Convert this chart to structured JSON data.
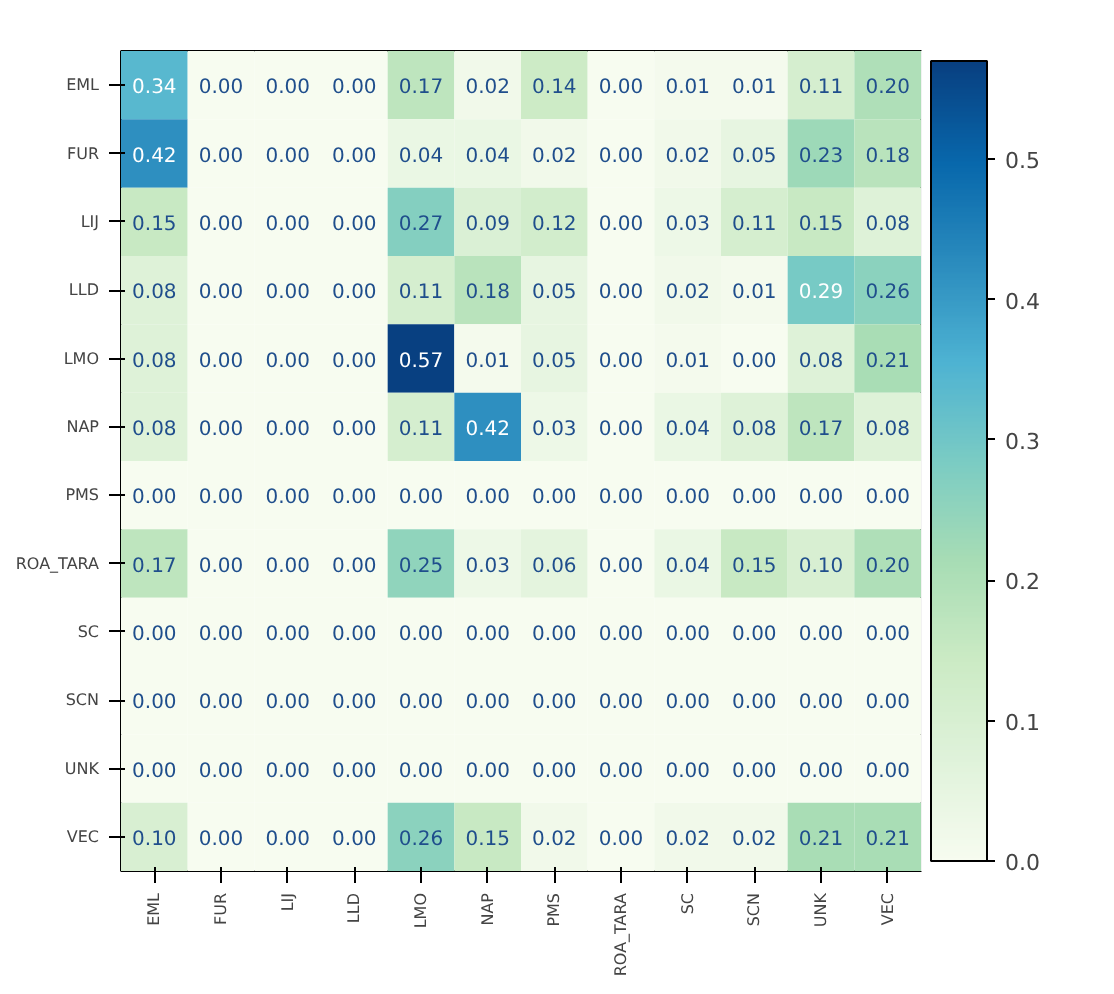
{
  "chart_data": {
    "type": "heatmap",
    "categories": [
      "EML",
      "FUR",
      "LIJ",
      "LLD",
      "LMO",
      "NAP",
      "PMS",
      "ROA_TARA",
      "SC",
      "SCN",
      "UNK",
      "VEC"
    ],
    "y_categories": [
      "EML",
      "FUR",
      "LIJ",
      "LLD",
      "LMO",
      "NAP",
      "PMS",
      "ROA_TARA",
      "SC",
      "SCN",
      "UNK",
      "VEC"
    ],
    "cells": [
      [
        0.34,
        0.0,
        0.0,
        0.0,
        0.17,
        0.02,
        0.14,
        0.0,
        0.01,
        0.01,
        0.11,
        0.2
      ],
      [
        0.42,
        0.0,
        0.0,
        0.0,
        0.04,
        0.04,
        0.02,
        0.0,
        0.02,
        0.05,
        0.23,
        0.18
      ],
      [
        0.15,
        0.0,
        0.0,
        0.0,
        0.27,
        0.09,
        0.12,
        0.0,
        0.03,
        0.11,
        0.15,
        0.08
      ],
      [
        0.08,
        0.0,
        0.0,
        0.0,
        0.11,
        0.18,
        0.05,
        0.0,
        0.02,
        0.01,
        0.29,
        0.26
      ],
      [
        0.08,
        0.0,
        0.0,
        0.0,
        0.57,
        0.01,
        0.05,
        0.0,
        0.01,
        0.0,
        0.08,
        0.21
      ],
      [
        0.08,
        0.0,
        0.0,
        0.0,
        0.11,
        0.42,
        0.03,
        0.0,
        0.04,
        0.08,
        0.17,
        0.08
      ],
      [
        0.0,
        0.0,
        0.0,
        0.0,
        0.0,
        0.0,
        0.0,
        0.0,
        0.0,
        0.0,
        0.0,
        0.0
      ],
      [
        0.17,
        0.0,
        0.0,
        0.0,
        0.25,
        0.03,
        0.06,
        0.0,
        0.04,
        0.15,
        0.1,
        0.2
      ],
      [
        0.0,
        0.0,
        0.0,
        0.0,
        0.0,
        0.0,
        0.0,
        0.0,
        0.0,
        0.0,
        0.0,
        0.0
      ],
      [
        0.0,
        0.0,
        0.0,
        0.0,
        0.0,
        0.0,
        0.0,
        0.0,
        0.0,
        0.0,
        0.0,
        0.0
      ],
      [
        0.0,
        0.0,
        0.0,
        0.0,
        0.0,
        0.0,
        0.0,
        0.0,
        0.0,
        0.0,
        0.0,
        0.0
      ],
      [
        0.1,
        0.0,
        0.0,
        0.0,
        0.26,
        0.15,
        0.02,
        0.0,
        0.02,
        0.02,
        0.21,
        0.21
      ]
    ],
    "cell_labels": [
      [
        "0.34",
        "0.00",
        "0.00",
        "0.00",
        "0.17",
        "0.02",
        "0.14",
        "0.00",
        "0.01",
        "0.01",
        "0.11",
        "0.20"
      ],
      [
        "0.42",
        "0.00",
        "0.00",
        "0.00",
        "0.04",
        "0.04",
        "0.02",
        "0.00",
        "0.02",
        "0.05",
        "0.23",
        "0.18"
      ],
      [
        "0.15",
        "0.00",
        "0.00",
        "0.00",
        "0.27",
        "0.09",
        "0.12",
        "0.00",
        "0.03",
        "0.11",
        "0.15",
        "0.08"
      ],
      [
        "0.08",
        "0.00",
        "0.00",
        "0.00",
        "0.11",
        "0.18",
        "0.05",
        "0.00",
        "0.02",
        "0.01",
        "0.29",
        "0.26"
      ],
      [
        "0.08",
        "0.00",
        "0.00",
        "0.00",
        "0.57",
        "0.01",
        "0.05",
        "0.00",
        "0.01",
        "0.00",
        "0.08",
        "0.21"
      ],
      [
        "0.08",
        "0.00",
        "0.00",
        "0.00",
        "0.11",
        "0.42",
        "0.03",
        "0.00",
        "0.04",
        "0.08",
        "0.17",
        "0.08"
      ],
      [
        "0.00",
        "0.00",
        "0.00",
        "0.00",
        "0.00",
        "0.00",
        "0.00",
        "0.00",
        "0.00",
        "0.00",
        "0.00",
        "0.00"
      ],
      [
        "0.17",
        "0.00",
        "0.00",
        "0.00",
        "0.25",
        "0.03",
        "0.06",
        "0.00",
        "0.04",
        "0.15",
        "0.10",
        "0.20"
      ],
      [
        "0.00",
        "0.00",
        "0.00",
        "0.00",
        "0.00",
        "0.00",
        "0.00",
        "0.00",
        "0.00",
        "0.00",
        "0.00",
        "0.00"
      ],
      [
        "0.00",
        "0.00",
        "0.00",
        "0.00",
        "0.00",
        "0.00",
        "0.00",
        "0.00",
        "0.00",
        "0.00",
        "0.00",
        "0.00"
      ],
      [
        "0.00",
        "0.00",
        "0.00",
        "0.00",
        "0.00",
        "0.00",
        "0.00",
        "0.00",
        "0.00",
        "0.00",
        "0.00",
        "0.00"
      ],
      [
        "0.10",
        "0.00",
        "0.00",
        "0.00",
        "0.26",
        "0.15",
        "0.02",
        "0.00",
        "0.02",
        "0.02",
        "0.21",
        "0.21"
      ]
    ],
    "clim": [
      0.0,
      0.57
    ],
    "cticks": [
      {
        "value": 0.0,
        "label": "0.0"
      },
      {
        "value": 0.1,
        "label": "0.1"
      },
      {
        "value": 0.2,
        "label": "0.2"
      },
      {
        "value": 0.3,
        "label": "0.3"
      },
      {
        "value": 0.4,
        "label": "0.4"
      },
      {
        "value": 0.5,
        "label": "0.5"
      }
    ],
    "grid": false
  }
}
